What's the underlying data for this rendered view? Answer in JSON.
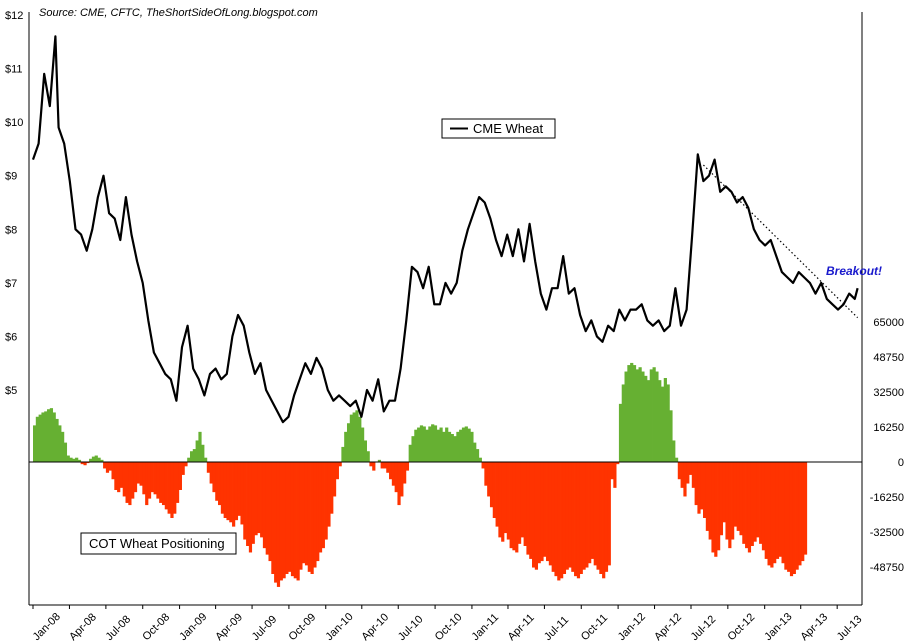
{
  "source_note": "Source: CME, CFTC, TheShortSideOfLong.blogspot.com",
  "annotation": "Breakout!",
  "colors": {
    "price_line": "#000000",
    "cot_positive": "#66b032",
    "cot_negative": "#ff3300",
    "trendline": "#000000",
    "annotation": "#1a1acc"
  },
  "chart_data": [
    {
      "type": "line",
      "name": "CME Wheat",
      "legend_label": "CME Wheat",
      "y_axis": "left",
      "ylim": [
        4,
        12
      ],
      "y_ticks": [
        "$5",
        "$6",
        "$7",
        "$8",
        "$9",
        "$10",
        "$11",
        "$12"
      ],
      "x_ticks": [
        "Jan-08",
        "Apr-08",
        "Jul-08",
        "Oct-08",
        "Jan-09",
        "Apr-09",
        "Jul-09",
        "Oct-09",
        "Jan-10",
        "Apr-10",
        "Jul-10",
        "Oct-10",
        "Jan-11",
        "Apr-11",
        "Jul-11",
        "Oct-11",
        "Jan-12",
        "Apr-12",
        "Jul-12",
        "Oct-12",
        "Jan-13",
        "Apr-13",
        "Jul-13"
      ],
      "x_start": "2008-01-01",
      "points": [
        [
          "2008-01-01",
          9.3
        ],
        [
          "2008-01-15",
          9.6
        ],
        [
          "2008-01-29",
          10.9
        ],
        [
          "2008-02-12",
          10.3
        ],
        [
          "2008-02-26",
          11.6
        ],
        [
          "2008-03-05",
          9.9
        ],
        [
          "2008-03-19",
          9.6
        ],
        [
          "2008-04-02",
          8.9
        ],
        [
          "2008-04-16",
          8.0
        ],
        [
          "2008-04-30",
          7.9
        ],
        [
          "2008-05-14",
          7.6
        ],
        [
          "2008-05-28",
          8.0
        ],
        [
          "2008-06-11",
          8.6
        ],
        [
          "2008-06-25",
          9.0
        ],
        [
          "2008-07-09",
          8.3
        ],
        [
          "2008-07-23",
          8.2
        ],
        [
          "2008-08-06",
          7.8
        ],
        [
          "2008-08-20",
          8.6
        ],
        [
          "2008-09-03",
          7.9
        ],
        [
          "2008-09-17",
          7.4
        ],
        [
          "2008-10-01",
          7.0
        ],
        [
          "2008-10-15",
          6.3
        ],
        [
          "2008-10-29",
          5.7
        ],
        [
          "2008-11-12",
          5.5
        ],
        [
          "2008-11-26",
          5.3
        ],
        [
          "2008-12-10",
          5.2
        ],
        [
          "2008-12-24",
          4.8
        ],
        [
          "2009-01-07",
          5.8
        ],
        [
          "2009-01-21",
          6.2
        ],
        [
          "2009-02-04",
          5.4
        ],
        [
          "2009-02-18",
          5.2
        ],
        [
          "2009-03-04",
          4.9
        ],
        [
          "2009-03-18",
          5.3
        ],
        [
          "2009-04-01",
          5.4
        ],
        [
          "2009-04-15",
          5.2
        ],
        [
          "2009-04-29",
          5.3
        ],
        [
          "2009-05-13",
          6.0
        ],
        [
          "2009-05-27",
          6.4
        ],
        [
          "2009-06-10",
          6.2
        ],
        [
          "2009-06-24",
          5.7
        ],
        [
          "2009-07-08",
          5.3
        ],
        [
          "2009-07-22",
          5.5
        ],
        [
          "2009-08-05",
          5.0
        ],
        [
          "2009-08-19",
          4.8
        ],
        [
          "2009-09-02",
          4.6
        ],
        [
          "2009-09-16",
          4.4
        ],
        [
          "2009-09-30",
          4.5
        ],
        [
          "2009-10-14",
          4.9
        ],
        [
          "2009-10-28",
          5.2
        ],
        [
          "2009-11-11",
          5.5
        ],
        [
          "2009-11-25",
          5.3
        ],
        [
          "2009-12-09",
          5.6
        ],
        [
          "2009-12-23",
          5.4
        ],
        [
          "2010-01-06",
          5.0
        ],
        [
          "2010-01-20",
          4.8
        ],
        [
          "2010-02-03",
          4.9
        ],
        [
          "2010-02-17",
          4.8
        ],
        [
          "2010-03-03",
          4.7
        ],
        [
          "2010-03-17",
          4.8
        ],
        [
          "2010-03-31",
          4.5
        ],
        [
          "2010-04-14",
          5.0
        ],
        [
          "2010-04-28",
          4.8
        ],
        [
          "2010-05-12",
          5.2
        ],
        [
          "2010-05-26",
          4.6
        ],
        [
          "2010-06-09",
          4.8
        ],
        [
          "2010-06-23",
          4.8
        ],
        [
          "2010-07-07",
          5.4
        ],
        [
          "2010-07-21",
          6.3
        ],
        [
          "2010-08-04",
          7.3
        ],
        [
          "2010-08-18",
          7.2
        ],
        [
          "2010-09-01",
          6.9
        ],
        [
          "2010-09-15",
          7.3
        ],
        [
          "2010-09-29",
          6.6
        ],
        [
          "2010-10-13",
          6.6
        ],
        [
          "2010-10-27",
          7.0
        ],
        [
          "2010-11-10",
          6.8
        ],
        [
          "2010-11-24",
          7.0
        ],
        [
          "2010-12-08",
          7.6
        ],
        [
          "2010-12-22",
          8.0
        ],
        [
          "2011-01-05",
          8.3
        ],
        [
          "2011-01-19",
          8.6
        ],
        [
          "2011-02-02",
          8.5
        ],
        [
          "2011-02-16",
          8.2
        ],
        [
          "2011-03-02",
          7.8
        ],
        [
          "2011-03-16",
          7.5
        ],
        [
          "2011-03-30",
          7.9
        ],
        [
          "2011-04-13",
          7.5
        ],
        [
          "2011-04-27",
          8.0
        ],
        [
          "2011-05-11",
          7.4
        ],
        [
          "2011-05-25",
          8.1
        ],
        [
          "2011-06-08",
          7.4
        ],
        [
          "2011-06-22",
          6.8
        ],
        [
          "2011-07-06",
          6.5
        ],
        [
          "2011-07-20",
          6.9
        ],
        [
          "2011-08-03",
          6.9
        ],
        [
          "2011-08-17",
          7.5
        ],
        [
          "2011-08-31",
          6.8
        ],
        [
          "2011-09-14",
          6.9
        ],
        [
          "2011-09-28",
          6.4
        ],
        [
          "2011-10-12",
          6.1
        ],
        [
          "2011-10-26",
          6.3
        ],
        [
          "2011-11-09",
          6.0
        ],
        [
          "2011-11-23",
          5.9
        ],
        [
          "2011-12-07",
          6.2
        ],
        [
          "2011-12-21",
          6.1
        ],
        [
          "2012-01-04",
          6.5
        ],
        [
          "2012-01-18",
          6.3
        ],
        [
          "2012-02-01",
          6.5
        ],
        [
          "2012-02-15",
          6.5
        ],
        [
          "2012-02-29",
          6.6
        ],
        [
          "2012-03-14",
          6.3
        ],
        [
          "2012-03-28",
          6.2
        ],
        [
          "2012-04-11",
          6.3
        ],
        [
          "2012-04-25",
          6.1
        ],
        [
          "2012-05-09",
          6.2
        ],
        [
          "2012-05-23",
          6.9
        ],
        [
          "2012-06-06",
          6.2
        ],
        [
          "2012-06-20",
          6.5
        ],
        [
          "2012-07-04",
          7.9
        ],
        [
          "2012-07-18",
          9.4
        ],
        [
          "2012-08-01",
          8.9
        ],
        [
          "2012-08-15",
          9.0
        ],
        [
          "2012-08-29",
          9.3
        ],
        [
          "2012-09-12",
          8.7
        ],
        [
          "2012-09-26",
          8.8
        ],
        [
          "2012-10-10",
          8.7
        ],
        [
          "2012-10-24",
          8.5
        ],
        [
          "2012-11-07",
          8.6
        ],
        [
          "2012-11-21",
          8.4
        ],
        [
          "2012-12-05",
          8.0
        ],
        [
          "2012-12-19",
          7.8
        ],
        [
          "2013-01-02",
          7.7
        ],
        [
          "2013-01-16",
          7.8
        ],
        [
          "2013-01-30",
          7.5
        ],
        [
          "2013-02-13",
          7.2
        ],
        [
          "2013-02-27",
          7.1
        ],
        [
          "2013-03-13",
          7.0
        ],
        [
          "2013-03-27",
          7.2
        ],
        [
          "2013-04-10",
          7.1
        ],
        [
          "2013-04-24",
          7.0
        ],
        [
          "2013-05-08",
          6.8
        ],
        [
          "2013-05-22",
          7.0
        ],
        [
          "2013-06-05",
          6.7
        ],
        [
          "2013-06-19",
          6.6
        ],
        [
          "2013-07-03",
          6.5
        ],
        [
          "2013-07-17",
          6.6
        ],
        [
          "2013-07-31",
          6.8
        ],
        [
          "2013-08-14",
          6.7
        ],
        [
          "2013-08-21",
          6.9
        ]
      ]
    },
    {
      "type": "bar",
      "name": "COT Wheat Positioning",
      "legend_label": "COT Wheat Positioning",
      "y_axis": "right",
      "ylim": [
        -65000,
        65000
      ],
      "y_ticks": [
        "65000",
        "48750",
        "32500",
        "16250",
        "0",
        "-16250",
        "-32500",
        "-48750"
      ],
      "x_start": "2008-01-01",
      "weekly_values": [
        17000,
        21000,
        22000,
        23000,
        23500,
        24500,
        25000,
        23000,
        20000,
        17000,
        14000,
        9000,
        3000,
        2000,
        1500,
        2000,
        1000,
        -1000,
        -1500,
        -500,
        1500,
        2500,
        3000,
        2000,
        1000,
        -3000,
        -5000,
        -4000,
        -8000,
        -13000,
        -14000,
        -12000,
        -16000,
        -19000,
        -20000,
        -17000,
        -14000,
        -10000,
        -11000,
        -15000,
        -20000,
        -17000,
        -14000,
        -15000,
        -17000,
        -19000,
        -20000,
        -22000,
        -24000,
        -26000,
        -24000,
        -19000,
        -13000,
        -6000,
        -2000,
        2000,
        5000,
        6000,
        10000,
        14000,
        8000,
        2000,
        -5000,
        -10000,
        -14000,
        -18000,
        -20000,
        -24000,
        -26000,
        -27000,
        -28000,
        -30000,
        -27000,
        -25000,
        -29000,
        -36000,
        -39000,
        -42000,
        -38000,
        -34000,
        -33000,
        -35000,
        -40000,
        -43000,
        -46000,
        -52000,
        -56000,
        -58000,
        -55000,
        -54000,
        -52000,
        -51000,
        -53000,
        -54000,
        -55000,
        -50000,
        -47000,
        -48000,
        -51000,
        -52000,
        -49000,
        -46000,
        -42000,
        -40000,
        -36000,
        -30000,
        -24000,
        -16000,
        -8000,
        -2000,
        7000,
        14000,
        18000,
        22000,
        23000,
        24000,
        21000,
        16000,
        10000,
        5000,
        -2000,
        -4000,
        0,
        1000,
        -3000,
        -3000,
        -5000,
        -8000,
        -11000,
        -14000,
        -20000,
        -16000,
        -10000,
        -4000,
        8000,
        12000,
        15000,
        16000,
        17000,
        16500,
        15000,
        16500,
        17500,
        17000,
        15000,
        16000,
        14000,
        16000,
        14000,
        13000,
        12000,
        14000,
        15000,
        16000,
        16500,
        15500,
        14000,
        9000,
        6000,
        2000,
        -3000,
        -11000,
        -16000,
        -21000,
        -26000,
        -30000,
        -35000,
        -37000,
        -33000,
        -36000,
        -40000,
        -41000,
        -42000,
        -38000,
        -35000,
        -39000,
        -43000,
        -45000,
        -49000,
        -50000,
        -47000,
        -46000,
        -44000,
        -46000,
        -48000,
        -51000,
        -53000,
        -55000,
        -54000,
        -52000,
        -50000,
        -49000,
        -51000,
        -53000,
        -54000,
        -52000,
        -50000,
        -49000,
        -47000,
        -45000,
        -48000,
        -50000,
        -52000,
        -54000,
        -51000,
        -48000,
        -8000,
        -12000,
        -1000,
        27000,
        36000,
        42000,
        45000,
        46000,
        45000,
        43000,
        44000,
        42000,
        40000,
        38000,
        43000,
        44000,
        42000,
        38000,
        35000,
        39000,
        36000,
        24000,
        10000,
        2000,
        -8000,
        -12000,
        -16000,
        -10000,
        -6000,
        -12000,
        -20000,
        -24000,
        -22000,
        -26000,
        -32000,
        -36000,
        -42000,
        -44000,
        -41000,
        -34000,
        -28000,
        -36000,
        -40000,
        -36000,
        -30000,
        -32000,
        -34000,
        -38000,
        -40000,
        -42000,
        -39000,
        -37000,
        -35000,
        -38000,
        -41000,
        -45000,
        -48000,
        -49000,
        -47000,
        -45000,
        -44000,
        -47000,
        -50000,
        -51000,
        -53000,
        -52000,
        -50000,
        -48000,
        -46000,
        -43000
      ]
    }
  ]
}
